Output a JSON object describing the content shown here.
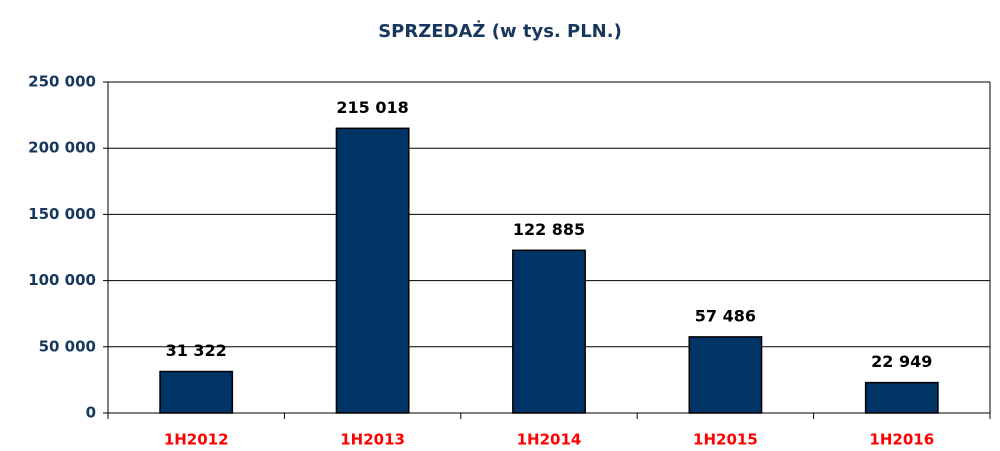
{
  "chart_data": {
    "type": "bar",
    "title": "SPRZEDAŻ (w tys. PLN.)",
    "categories": [
      "1H2012",
      "1H2013",
      "1H2014",
      "1H2015",
      "1H2016"
    ],
    "values": [
      31322,
      215018,
      122885,
      57486,
      22949
    ],
    "value_labels": [
      "31 322",
      "215 018",
      "122 885",
      "57 486",
      "22 949"
    ],
    "color": "#003366",
    "ylim": [
      0,
      250000
    ],
    "yticks": [
      0,
      {
        "value": 50000,
        "label": "50 000"
      },
      {
        "value": 100000,
        "label": "100 000"
      },
      {
        "value": 150000,
        "label": "150 000"
      },
      {
        "value": 200000,
        "label": "200 000"
      },
      {
        "value": 250000,
        "label": "250 000"
      }
    ],
    "grid": true
  }
}
